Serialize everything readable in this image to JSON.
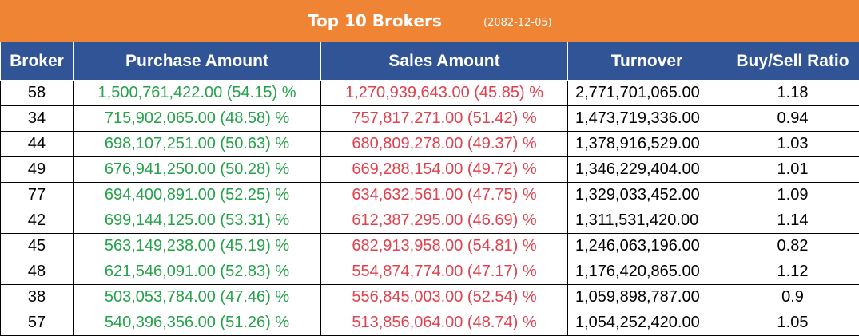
{
  "header": {
    "title": "Top 10 Brokers",
    "date": "(2082-12-05)"
  },
  "colors": {
    "title_bg": "#ee8434",
    "header_bg": "#305496",
    "buy_text": "#24a24a",
    "sell_text": "#e0414e"
  },
  "table": {
    "columns": [
      "Broker",
      "Purchase Amount",
      "Sales Amount",
      "Turnover",
      "Buy/Sell Ratio"
    ],
    "rows": [
      {
        "broker": "58",
        "purchase": "1,500,761,422.00 (54.15) %",
        "sales": "1,270,939,643.00 (45.85) %",
        "turnover": "2,771,701,065.00",
        "ratio": "1.18"
      },
      {
        "broker": "34",
        "purchase": "715,902,065.00 (48.58) %",
        "sales": "757,817,271.00 (51.42) %",
        "turnover": "1,473,719,336.00",
        "ratio": "0.94"
      },
      {
        "broker": "44",
        "purchase": "698,107,251.00 (50.63) %",
        "sales": "680,809,278.00 (49.37) %",
        "turnover": "1,378,916,529.00",
        "ratio": "1.03"
      },
      {
        "broker": "49",
        "purchase": "676,941,250.00 (50.28) %",
        "sales": "669,288,154.00 (49.72) %",
        "turnover": "1,346,229,404.00",
        "ratio": "1.01"
      },
      {
        "broker": "77",
        "purchase": "694,400,891.00 (52.25) %",
        "sales": "634,632,561.00 (47.75) %",
        "turnover": "1,329,033,452.00",
        "ratio": "1.09"
      },
      {
        "broker": "42",
        "purchase": "699,144,125.00 (53.31) %",
        "sales": "612,387,295.00 (46.69) %",
        "turnover": "1,311,531,420.00",
        "ratio": "1.14"
      },
      {
        "broker": "45",
        "purchase": "563,149,238.00 (45.19) %",
        "sales": "682,913,958.00 (54.81) %",
        "turnover": "1,246,063,196.00",
        "ratio": "0.82"
      },
      {
        "broker": "48",
        "purchase": "621,546,091.00 (52.83) %",
        "sales": "554,874,774.00 (47.17) %",
        "turnover": "1,176,420,865.00",
        "ratio": "1.12"
      },
      {
        "broker": "38",
        "purchase": "503,053,784.00 (47.46) %",
        "sales": "556,845,003.00 (52.54) %",
        "turnover": "1,059,898,787.00",
        "ratio": "0.9"
      },
      {
        "broker": "57",
        "purchase": "540,396,356.00 (51.26) %",
        "sales": "513,856,064.00 (48.74) %",
        "turnover": "1,054,252,420.00",
        "ratio": "1.05"
      }
    ]
  }
}
